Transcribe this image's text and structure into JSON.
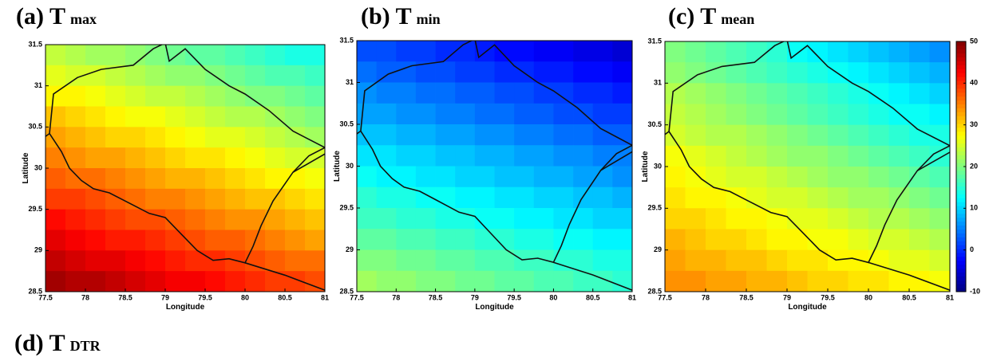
{
  "chart_data": [
    {
      "type": "heatmap",
      "title": "(a) T",
      "title_subscript": "max",
      "x_label": "Longitude",
      "y_label": "Latitude",
      "xlim": [
        77.5,
        81
      ],
      "ylim": [
        28.5,
        31.5
      ],
      "xticks": [
        77.5,
        78,
        78.5,
        79,
        79.5,
        80,
        80.5,
        81
      ],
      "yticks": [
        28.5,
        29,
        29.5,
        30,
        30.5,
        31,
        31.5
      ],
      "colormap": "jet",
      "clim": [
        -10,
        50
      ],
      "x": [
        77.625,
        77.875,
        78.125,
        78.375,
        78.625,
        78.875,
        79.125,
        79.375,
        79.625,
        79.875,
        80.125,
        80.375,
        80.625,
        80.875
      ],
      "y": [
        31.375,
        31.125,
        30.875,
        30.625,
        30.375,
        30.125,
        29.875,
        29.625,
        29.375,
        29.125,
        28.875,
        28.625
      ],
      "z": [
        [
          24,
          23,
          22,
          22,
          21,
          20,
          19,
          18,
          18,
          17,
          16,
          15,
          14,
          14
        ],
        [
          26,
          25,
          25,
          24,
          23,
          22,
          21,
          21,
          20,
          19,
          18,
          17,
          17,
          16
        ],
        [
          28,
          28,
          27,
          26,
          25,
          24,
          24,
          23,
          22,
          21,
          20,
          20,
          19,
          18
        ],
        [
          31,
          30,
          29,
          28,
          27,
          27,
          26,
          25,
          24,
          23,
          23,
          22,
          21,
          20
        ],
        [
          33,
          32,
          31,
          30,
          30,
          29,
          28,
          27,
          26,
          26,
          25,
          24,
          23,
          22
        ],
        [
          35,
          34,
          33,
          33,
          32,
          31,
          30,
          29,
          29,
          28,
          27,
          26,
          25,
          25
        ],
        [
          37,
          36,
          36,
          35,
          34,
          33,
          32,
          32,
          31,
          30,
          29,
          28,
          28,
          27
        ],
        [
          39,
          39,
          38,
          37,
          36,
          35,
          35,
          34,
          33,
          32,
          31,
          31,
          30,
          29
        ],
        [
          42,
          41,
          40,
          39,
          38,
          38,
          37,
          36,
          35,
          34,
          34,
          33,
          32,
          31
        ],
        [
          44,
          43,
          42,
          41,
          41,
          40,
          39,
          38,
          37,
          37,
          36,
          35,
          34,
          33
        ],
        [
          46,
          45,
          44,
          44,
          43,
          42,
          41,
          40,
          40,
          39,
          38,
          37,
          36,
          36
        ],
        [
          48,
          47,
          47,
          46,
          45,
          44,
          43,
          43,
          42,
          41,
          40,
          39,
          39,
          38
        ]
      ]
    },
    {
      "type": "heatmap",
      "title": "(b) T",
      "title_subscript": "min",
      "x_label": "Longitude",
      "y_label": "Latitude",
      "xlim": [
        77.5,
        81
      ],
      "ylim": [
        28.5,
        31.5
      ],
      "xticks": [
        77.5,
        78,
        78.5,
        79,
        79.5,
        80,
        80.5,
        81
      ],
      "yticks": [
        28.5,
        29,
        29.5,
        30,
        30.5,
        31,
        31.5
      ],
      "colormap": "jet",
      "clim": [
        -10,
        50
      ],
      "x": [
        77.625,
        77.875,
        78.125,
        78.375,
        78.625,
        78.875,
        79.125,
        79.375,
        79.625,
        79.875,
        80.125,
        80.375,
        80.625,
        80.875
      ],
      "y": [
        31.375,
        31.125,
        30.875,
        30.625,
        30.375,
        30.125,
        29.875,
        29.625,
        29.375,
        29.125,
        28.875,
        28.625
      ],
      "z": [
        [
          2,
          2,
          1,
          1,
          0,
          0,
          -1,
          -2,
          -2,
          -3,
          -3,
          -4,
          -4,
          -5
        ],
        [
          4,
          3,
          3,
          2,
          2,
          1,
          1,
          0,
          0,
          -1,
          -1,
          -2,
          -2,
          -3
        ],
        [
          6,
          5,
          5,
          4,
          4,
          3,
          3,
          2,
          2,
          1,
          1,
          0,
          0,
          -1
        ],
        [
          7,
          7,
          6,
          6,
          5,
          5,
          4,
          4,
          3,
          3,
          2,
          2,
          1,
          1
        ],
        [
          9,
          9,
          8,
          8,
          7,
          7,
          6,
          6,
          5,
          5,
          4,
          4,
          3,
          3
        ],
        [
          11,
          11,
          10,
          10,
          9,
          9,
          8,
          8,
          7,
          7,
          6,
          6,
          5,
          5
        ],
        [
          13,
          12,
          12,
          11,
          11,
          10,
          10,
          9,
          9,
          8,
          8,
          7,
          7,
          6
        ],
        [
          15,
          14,
          14,
          13,
          13,
          12,
          12,
          11,
          11,
          10,
          10,
          9,
          9,
          8
        ],
        [
          16,
          16,
          15,
          15,
          14,
          14,
          13,
          13,
          12,
          12,
          11,
          11,
          10,
          10
        ],
        [
          18,
          18,
          17,
          17,
          16,
          16,
          15,
          15,
          14,
          14,
          13,
          13,
          12,
          12
        ],
        [
          20,
          20,
          19,
          19,
          18,
          18,
          17,
          17,
          16,
          16,
          15,
          15,
          14,
          14
        ],
        [
          22,
          21,
          21,
          20,
          20,
          19,
          19,
          18,
          18,
          17,
          17,
          16,
          16,
          15
        ]
      ]
    },
    {
      "type": "heatmap",
      "title": "(c) T",
      "title_subscript": "mean",
      "x_label": "Longitude",
      "y_label": "Latitude",
      "xlim": [
        77.5,
        81
      ],
      "ylim": [
        28.5,
        31.5
      ],
      "xticks": [
        77.5,
        78,
        78.5,
        79,
        79.5,
        80,
        80.5,
        81
      ],
      "yticks": [
        28.5,
        29,
        29.5,
        30,
        30.5,
        31,
        31.5
      ],
      "colormap": "jet",
      "clim": [
        -10,
        50
      ],
      "colorbar_ticks": [
        -10,
        0,
        10,
        20,
        30,
        40,
        50
      ],
      "x": [
        77.625,
        77.875,
        78.125,
        78.375,
        78.625,
        78.875,
        79.125,
        79.375,
        79.625,
        79.875,
        80.125,
        80.375,
        80.625,
        80.875
      ],
      "y": [
        31.375,
        31.125,
        30.875,
        30.625,
        30.375,
        30.125,
        29.875,
        29.625,
        29.375,
        29.125,
        28.875,
        28.625
      ],
      "z": [
        [
          20,
          19,
          18,
          17,
          16,
          15,
          13,
          12,
          11,
          10,
          9,
          8,
          7,
          6
        ],
        [
          21,
          20,
          19,
          18,
          17,
          16,
          15,
          14,
          13,
          12,
          11,
          10,
          9,
          8
        ],
        [
          23,
          22,
          21,
          20,
          19,
          18,
          17,
          16,
          15,
          14,
          13,
          12,
          11,
          10
        ],
        [
          24,
          23,
          22,
          21,
          20,
          19,
          18,
          17,
          16,
          15,
          14,
          13,
          13,
          12
        ],
        [
          25,
          24,
          23,
          23,
          22,
          21,
          20,
          19,
          18,
          17,
          16,
          15,
          14,
          14
        ],
        [
          27,
          26,
          25,
          24,
          23,
          22,
          21,
          21,
          20,
          19,
          18,
          17,
          16,
          15
        ],
        [
          28,
          27,
          26,
          25,
          25,
          24,
          23,
          22,
          21,
          21,
          20,
          19,
          18,
          17
        ],
        [
          29,
          28,
          28,
          27,
          26,
          25,
          25,
          24,
          23,
          22,
          22,
          21,
          20,
          19
        ],
        [
          30,
          30,
          29,
          28,
          28,
          27,
          26,
          26,
          25,
          24,
          23,
          23,
          22,
          21
        ],
        [
          32,
          31,
          30,
          30,
          29,
          28,
          28,
          27,
          27,
          26,
          25,
          25,
          24,
          23
        ],
        [
          33,
          32,
          32,
          31,
          31,
          30,
          29,
          29,
          28,
          28,
          27,
          26,
          26,
          25
        ],
        [
          34,
          34,
          33,
          33,
          32,
          32,
          31,
          30,
          30,
          29,
          29,
          28,
          28,
          27
        ]
      ]
    }
  ],
  "caption": {
    "text": "(d) T",
    "subscript": "DTR"
  }
}
